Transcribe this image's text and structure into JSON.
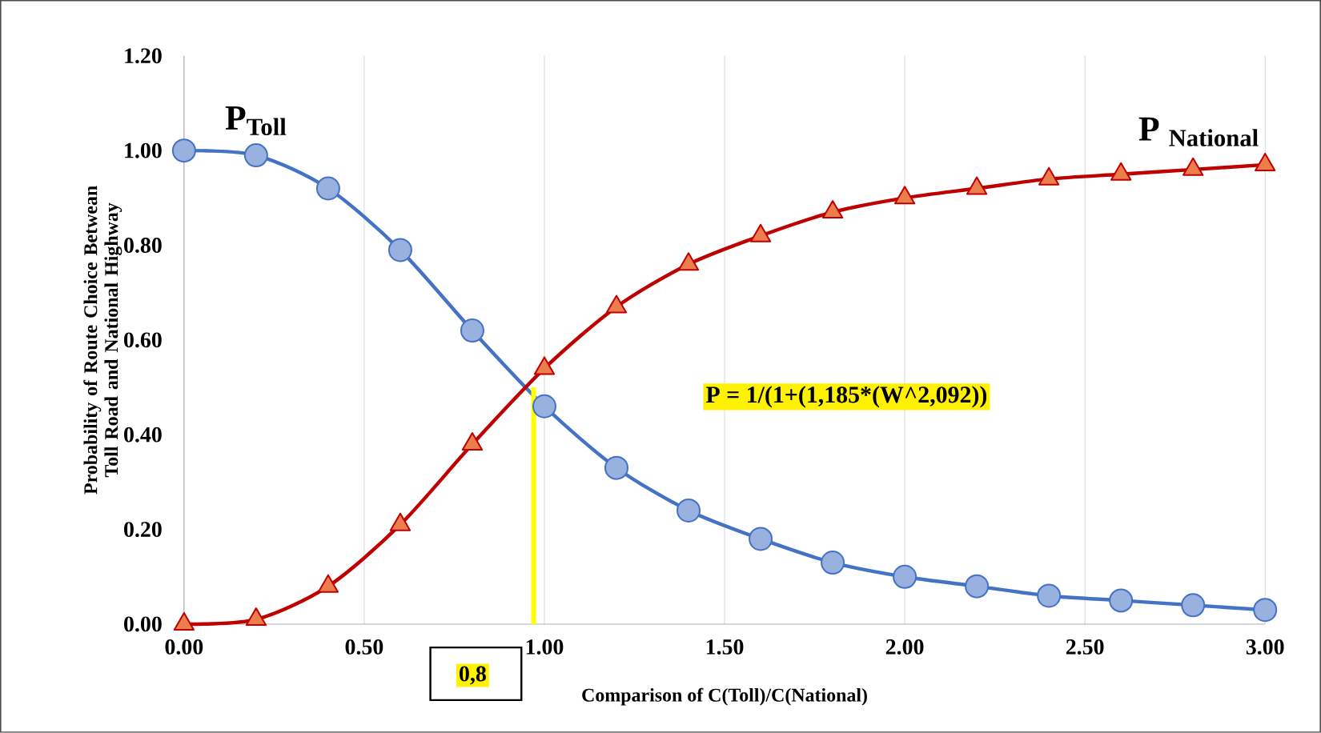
{
  "chart_data": {
    "type": "line",
    "xlabel": "Comparison of C(Toll)/C(National)",
    "ylabel": "Probability of Route Choice Betwean Toll Road and National Highway",
    "x": [
      0,
      0.2,
      0.4,
      0.6,
      0.8,
      1.0,
      1.2,
      1.4,
      1.6,
      1.8,
      2.0,
      2.2,
      2.4,
      2.6,
      2.8,
      3.0
    ],
    "series": [
      {
        "name": "P$_{Toll}$",
        "color": "#4472c4",
        "marker": "circle",
        "values": [
          1.0,
          0.99,
          0.92,
          0.79,
          0.62,
          0.46,
          0.33,
          0.24,
          0.18,
          0.13,
          0.1,
          0.08,
          0.06,
          0.05,
          0.04,
          0.03
        ]
      },
      {
        "name": "P $_{National}$",
        "color": "#c00000",
        "marker": "triangle",
        "values": [
          0.0,
          0.01,
          0.08,
          0.21,
          0.38,
          0.54,
          0.67,
          0.76,
          0.82,
          0.87,
          0.9,
          0.92,
          0.94,
          0.95,
          0.96,
          0.97
        ]
      },
      {
        "color": "#ffff00",
        "marker": "none",
        "x": [
          0.97,
          0.97
        ],
        "values": [
          0,
          0.5
        ]
      }
    ],
    "xlim": [
      0,
      3
    ],
    "ylim": [
      0,
      1.2
    ],
    "xticks": [
      {
        "value": 0,
        "label": "0.00"
      },
      {
        "value": 0.5,
        "label": "0.50"
      },
      {
        "value": 1,
        "label": "1.00"
      },
      {
        "value": 1.5,
        "label": "1.50"
      },
      {
        "value": 2,
        "label": "2.00"
      },
      {
        "value": 2.5,
        "label": "2.50"
      },
      {
        "value": 3,
        "label": "3.00"
      }
    ],
    "yticks": [
      {
        "value": 0,
        "label": "0.00"
      },
      {
        "value": 0.2,
        "label": "0.20"
      },
      {
        "value": 0.4,
        "label": "0.40"
      },
      {
        "value": 0.6,
        "label": "0.60"
      },
      {
        "value": 0.8,
        "label": "0.80"
      },
      {
        "value": 1,
        "label": "1.00"
      },
      {
        "value": 1.2,
        "label": "1.20"
      }
    ],
    "grid": "x",
    "annotations": [
      "P = 1/(1+(1,185*(W^2,092))",
      "0,8"
    ]
  }
}
